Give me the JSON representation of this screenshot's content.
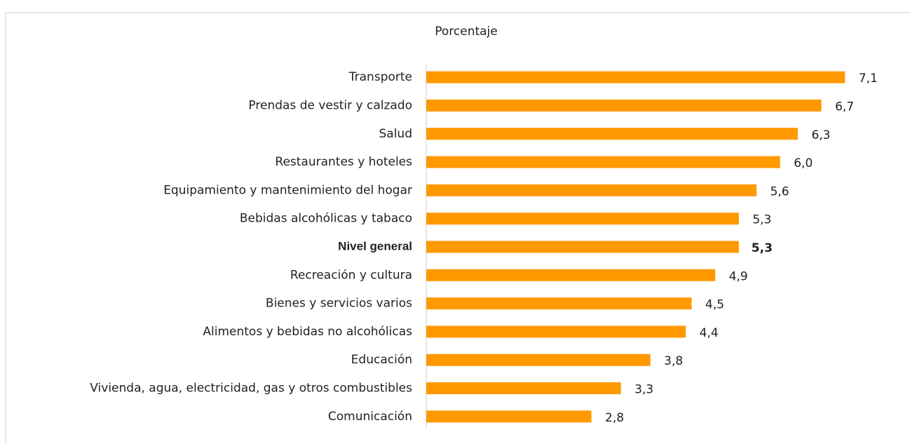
{
  "chart_data": {
    "type": "bar",
    "orientation": "horizontal",
    "subtitle": "Porcentaje",
    "categories": [
      "Transporte",
      "Prendas de vestir y calzado",
      "Salud",
      "Restaurantes y hoteles",
      "Equipamiento y mantenimiento del hogar",
      "Bebidas alcohólicas y tabaco",
      "Nivel general",
      "Recreación y cultura",
      "Bienes y servicios varios",
      "Alimentos y bebidas no alcohólicas",
      "Educación",
      "Vivienda, agua, electricidad, gas y otros combustibles",
      "Comunicación"
    ],
    "values": [
      7.1,
      6.7,
      6.3,
      6.0,
      5.6,
      5.3,
      5.3,
      4.9,
      4.5,
      4.4,
      3.8,
      3.3,
      2.8
    ],
    "value_labels": [
      "7,1",
      "6,7",
      "6,3",
      "6,0",
      "5,6",
      "5,3",
      "5,3",
      "4,9",
      "4,5",
      "4,4",
      "3,8",
      "3,3",
      "2,8"
    ],
    "color": "#ff9900",
    "xlim": [
      0,
      8
    ],
    "highlight": 6
  }
}
